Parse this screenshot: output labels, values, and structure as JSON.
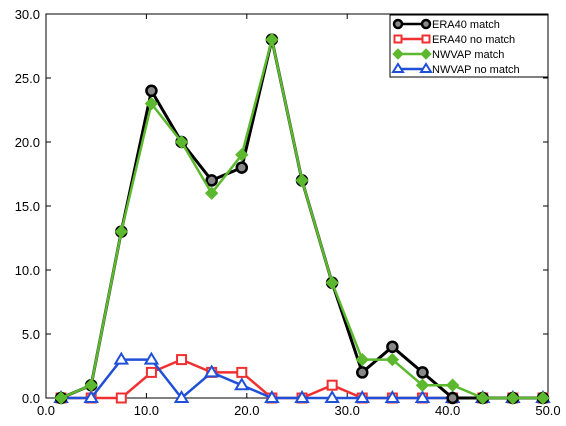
{
  "chart_data": {
    "type": "line",
    "title": "",
    "xlabel": "",
    "ylabel": "",
    "xlim": [
      0,
      50
    ],
    "ylim": [
      0,
      30
    ],
    "x_ticks": [
      0,
      10,
      20,
      30,
      40,
      50
    ],
    "x_tick_labels": [
      "0.0",
      "10.0",
      "20.0",
      "30.0",
      "40.0",
      "50.0"
    ],
    "y_ticks": [
      0,
      5,
      10,
      15,
      20,
      25,
      30
    ],
    "y_tick_labels": [
      "0.0",
      "5.0",
      "10.0",
      "15.0",
      "20.0",
      "25.0",
      "30.0"
    ],
    "grid": false,
    "legend_position": "top-right",
    "series": [
      {
        "name": "ERA40 match",
        "color": "#000000",
        "marker": "circle",
        "x": [
          1.5,
          4.5,
          7.5,
          10.5,
          13.5,
          16.5,
          19.5,
          22.5,
          25.5,
          28.5,
          31.5,
          34.5,
          37.5,
          40.5,
          43.5,
          46.5,
          49.5
        ],
        "y": [
          0,
          1,
          13,
          24,
          20,
          17,
          18,
          28,
          17,
          9,
          2,
          4,
          2,
          0,
          0,
          0,
          0
        ]
      },
      {
        "name": "ERA40 no match",
        "color": "#f03030",
        "marker": "square",
        "x": [
          1.5,
          4.5,
          7.5,
          10.5,
          13.5,
          16.5,
          19.5,
          22.5,
          25.5,
          28.5,
          31.5,
          34.5,
          37.5,
          40.5,
          43.5,
          46.5,
          49.5
        ],
        "y": [
          0,
          0,
          0,
          2,
          3,
          2,
          2,
          0,
          0,
          1,
          0,
          0,
          0,
          0,
          0,
          0,
          0
        ]
      },
      {
        "name": "NWVAP match",
        "color": "#5cb82e",
        "marker": "diamond",
        "x": [
          1.5,
          4.5,
          7.5,
          10.5,
          13.5,
          16.5,
          19.5,
          22.5,
          25.5,
          28.5,
          31.5,
          34.5,
          37.5,
          40.5,
          43.5,
          46.5,
          49.5
        ],
        "y": [
          0,
          1,
          13,
          23,
          20,
          16,
          19,
          28,
          17,
          9,
          3,
          3,
          1,
          1,
          0,
          0,
          0
        ]
      },
      {
        "name": "NWVAP no match",
        "color": "#2050d8",
        "marker": "triangle",
        "x": [
          1.5,
          4.5,
          7.5,
          10.5,
          13.5,
          16.5,
          19.5,
          22.5,
          25.5,
          28.5,
          31.5,
          34.5,
          37.5,
          40.5,
          43.5,
          46.5,
          49.5
        ],
        "y": [
          0,
          0,
          3,
          3,
          0,
          2,
          1,
          0,
          0,
          0,
          0,
          0,
          0,
          0,
          0,
          0,
          0
        ]
      }
    ]
  }
}
